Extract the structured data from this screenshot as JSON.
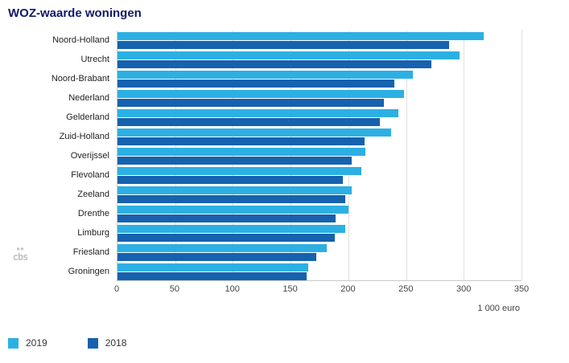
{
  "title": "WOZ-waarde woningen",
  "chart_data": {
    "type": "bar",
    "orientation": "horizontal",
    "title": "WOZ-waarde woningen",
    "categories": [
      "Noord-Holland",
      "Utrecht",
      "Noord-Brabant",
      "Nederland",
      "Gelderland",
      "Zuid-Holland",
      "Overijssel",
      "Flevoland",
      "Zeeland",
      "Drenthe",
      "Limburg",
      "Friesland",
      "Groningen"
    ],
    "series": [
      {
        "name": "2019",
        "color": "#2cb0e3",
        "values": [
          317,
          296,
          256,
          248,
          243,
          237,
          215,
          211,
          203,
          200,
          197,
          181,
          165
        ]
      },
      {
        "name": "2018",
        "color": "#1662ae",
        "values": [
          287,
          272,
          240,
          231,
          227,
          214,
          203,
          195,
          197,
          189,
          188,
          172,
          164
        ]
      }
    ],
    "xlabel": "1 000 euro",
    "xticks": [
      0,
      50,
      100,
      150,
      200,
      250,
      300,
      350
    ],
    "xlim": [
      0,
      350
    ],
    "grid": true,
    "legend_position": "bottom"
  },
  "logo": {
    "label": "cbs"
  },
  "colors": {
    "title": "#13186b",
    "gridline": "#e0e0e0",
    "axis": "#c9c9c9",
    "axis_text": "#444444"
  }
}
